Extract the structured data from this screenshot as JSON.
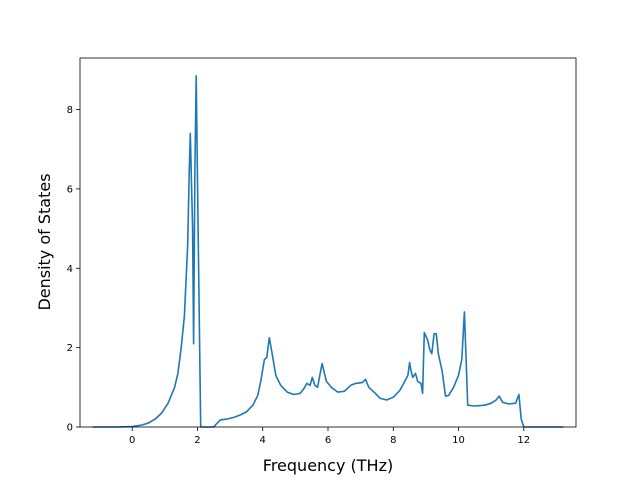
{
  "chart_data": {
    "type": "line",
    "title": "",
    "xlabel": "Frequency (THz)",
    "ylabel": "Density of States",
    "xlim": [
      -1.6,
      13.6
    ],
    "ylim": [
      0,
      9.3
    ],
    "x_ticks": [
      0,
      2,
      4,
      6,
      8,
      10,
      12
    ],
    "y_ticks": [
      0,
      2,
      4,
      6,
      8
    ],
    "x_tick_labels": [
      "0",
      "2",
      "4",
      "6",
      "8",
      "10",
      "12"
    ],
    "y_tick_labels": [
      "0",
      "2",
      "4",
      "6",
      "8"
    ],
    "grid": false,
    "legend": "none",
    "series": [
      {
        "color": "#1f77b4",
        "points": [
          [
            -1.2,
            0.0
          ],
          [
            -0.5,
            0.0
          ],
          [
            0.0,
            0.01
          ],
          [
            0.3,
            0.05
          ],
          [
            0.5,
            0.1
          ],
          [
            0.7,
            0.2
          ],
          [
            0.9,
            0.35
          ],
          [
            1.1,
            0.6
          ],
          [
            1.3,
            1.0
          ],
          [
            1.4,
            1.35
          ],
          [
            1.5,
            2.0
          ],
          [
            1.6,
            2.8
          ],
          [
            1.7,
            4.6
          ],
          [
            1.75,
            6.5
          ],
          [
            1.78,
            7.4
          ],
          [
            1.85,
            5.0
          ],
          [
            1.88,
            2.1
          ],
          [
            1.92,
            6.5
          ],
          [
            1.96,
            8.85
          ],
          [
            2.02,
            5.0
          ],
          [
            2.1,
            0.0
          ],
          [
            2.5,
            0.0
          ],
          [
            2.55,
            0.05
          ],
          [
            2.7,
            0.18
          ],
          [
            2.9,
            0.2
          ],
          [
            3.1,
            0.24
          ],
          [
            3.3,
            0.3
          ],
          [
            3.5,
            0.38
          ],
          [
            3.7,
            0.55
          ],
          [
            3.85,
            0.8
          ],
          [
            3.95,
            1.2
          ],
          [
            4.05,
            1.7
          ],
          [
            4.12,
            1.75
          ],
          [
            4.2,
            2.25
          ],
          [
            4.3,
            1.8
          ],
          [
            4.4,
            1.3
          ],
          [
            4.55,
            1.05
          ],
          [
            4.75,
            0.88
          ],
          [
            4.95,
            0.82
          ],
          [
            5.15,
            0.85
          ],
          [
            5.25,
            0.95
          ],
          [
            5.35,
            1.1
          ],
          [
            5.45,
            1.05
          ],
          [
            5.52,
            1.25
          ],
          [
            5.6,
            1.05
          ],
          [
            5.68,
            1.0
          ],
          [
            5.75,
            1.3
          ],
          [
            5.82,
            1.6
          ],
          [
            5.95,
            1.15
          ],
          [
            6.1,
            1.0
          ],
          [
            6.3,
            0.88
          ],
          [
            6.5,
            0.9
          ],
          [
            6.7,
            1.05
          ],
          [
            6.85,
            1.1
          ],
          [
            7.05,
            1.12
          ],
          [
            7.15,
            1.2
          ],
          [
            7.25,
            1.0
          ],
          [
            7.45,
            0.85
          ],
          [
            7.6,
            0.72
          ],
          [
            7.8,
            0.68
          ],
          [
            8.0,
            0.75
          ],
          [
            8.2,
            0.92
          ],
          [
            8.35,
            1.15
          ],
          [
            8.45,
            1.3
          ],
          [
            8.5,
            1.62
          ],
          [
            8.55,
            1.4
          ],
          [
            8.6,
            1.25
          ],
          [
            8.68,
            1.35
          ],
          [
            8.75,
            1.15
          ],
          [
            8.85,
            1.1
          ],
          [
            8.9,
            0.85
          ],
          [
            8.95,
            2.38
          ],
          [
            9.05,
            2.2
          ],
          [
            9.12,
            1.95
          ],
          [
            9.18,
            1.85
          ],
          [
            9.25,
            2.35
          ],
          [
            9.32,
            2.35
          ],
          [
            9.38,
            1.85
          ],
          [
            9.5,
            1.4
          ],
          [
            9.6,
            0.78
          ],
          [
            9.7,
            0.8
          ],
          [
            9.85,
            1.0
          ],
          [
            10.0,
            1.3
          ],
          [
            10.1,
            1.7
          ],
          [
            10.18,
            2.9
          ],
          [
            10.24,
            1.5
          ],
          [
            10.28,
            0.55
          ],
          [
            10.5,
            0.53
          ],
          [
            10.8,
            0.55
          ],
          [
            11.0,
            0.6
          ],
          [
            11.15,
            0.68
          ],
          [
            11.25,
            0.78
          ],
          [
            11.35,
            0.62
          ],
          [
            11.55,
            0.58
          ],
          [
            11.75,
            0.6
          ],
          [
            11.85,
            0.82
          ],
          [
            11.92,
            0.2
          ],
          [
            12.0,
            0.0
          ],
          [
            13.2,
            0.0
          ]
        ]
      }
    ]
  }
}
